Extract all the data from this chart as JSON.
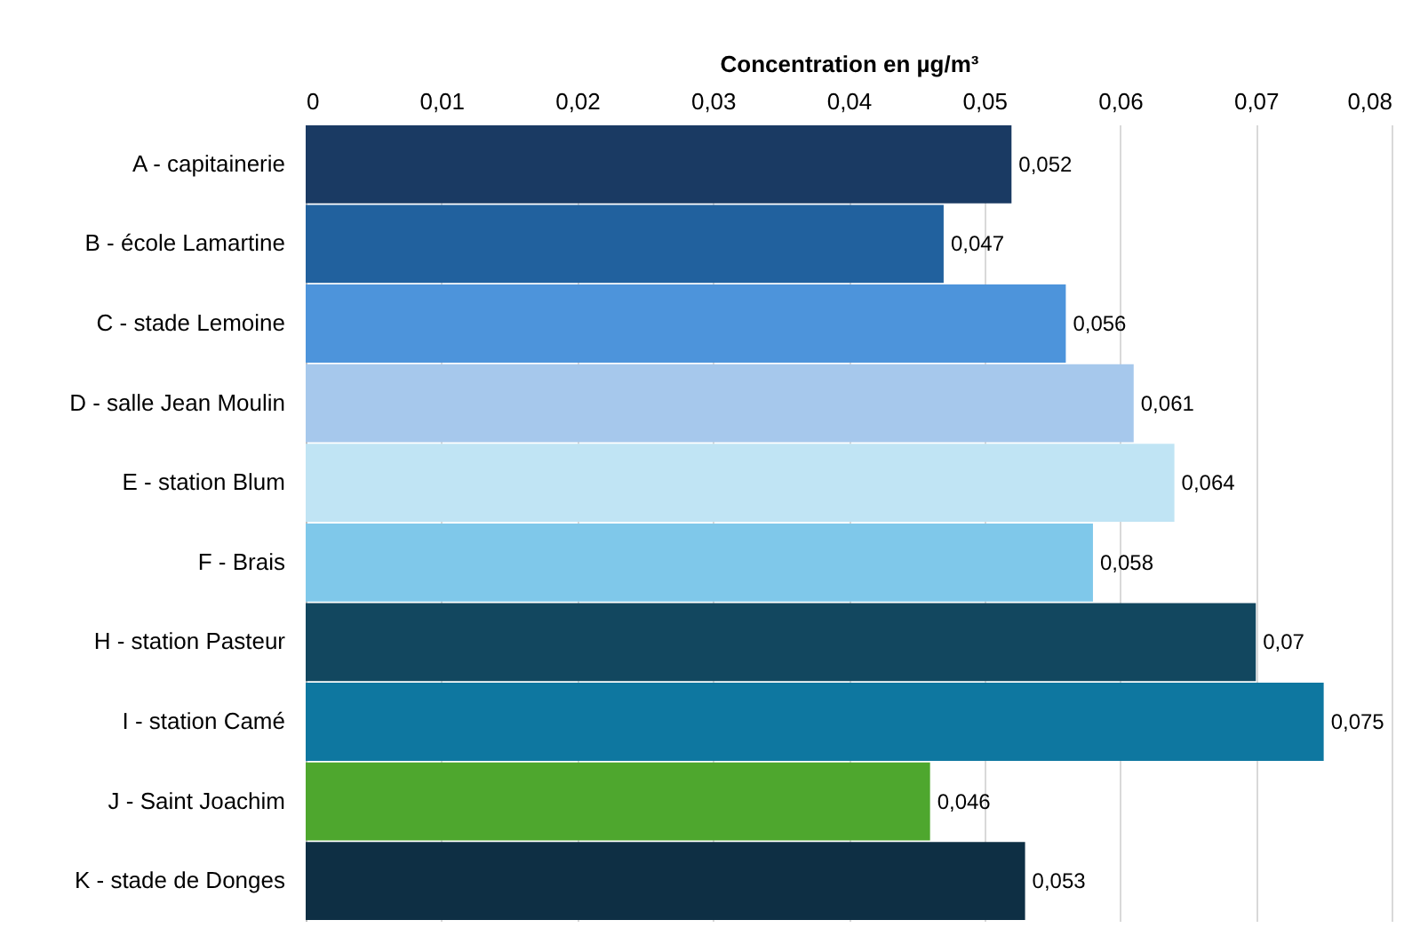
{
  "chart_data": {
    "type": "bar",
    "orientation": "horizontal",
    "xlabel": "Concentration en µg/m³",
    "categories": [
      "A - capitainerie",
      "B - école Lamartine",
      "C - stade Lemoine",
      "D - salle Jean Moulin",
      "E - station Blum",
      "F - Brais",
      "H - station Pasteur",
      "I - station Camé",
      "J - Saint Joachim",
      "K - stade de Donges"
    ],
    "values": [
      0.052,
      0.047,
      0.056,
      0.061,
      0.064,
      0.058,
      0.07,
      0.075,
      0.046,
      0.053
    ],
    "colors": [
      "#1a3a63",
      "#21619e",
      "#4d94db",
      "#a6c8ec",
      "#c0e4f4",
      "#7fc8ea",
      "#12475f",
      "#0e77a0",
      "#4ea72e",
      "#0e2f44"
    ],
    "value_labels": [
      "0,052",
      "0,047",
      "0,056",
      "0,061",
      "0,064",
      "0,058",
      "0,07",
      "0,075",
      "0,046",
      "0,053"
    ],
    "xlim": [
      0,
      0.08
    ],
    "xticks": [
      {
        "value": 0,
        "label": "0"
      },
      {
        "value": 0.01,
        "label": "0,01"
      },
      {
        "value": 0.02,
        "label": "0,02"
      },
      {
        "value": 0.03,
        "label": "0,03"
      },
      {
        "value": 0.04,
        "label": "0,04"
      },
      {
        "value": 0.05,
        "label": "0,05"
      },
      {
        "value": 0.06,
        "label": "0,06"
      },
      {
        "value": 0.07,
        "label": "0,07"
      },
      {
        "value": 0.08,
        "label": "0,08"
      }
    ],
    "grid": "x"
  }
}
